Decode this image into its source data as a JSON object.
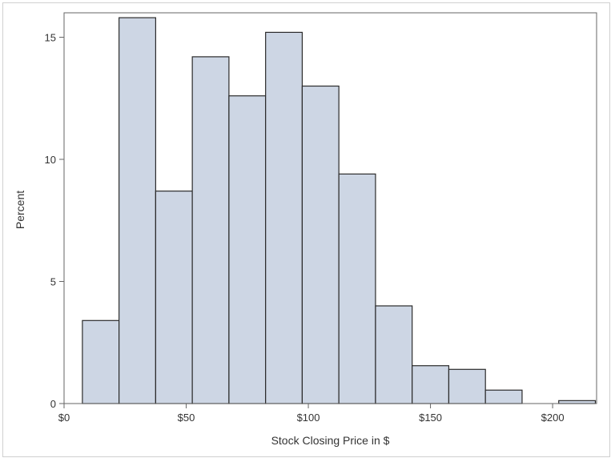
{
  "chart_data": {
    "type": "bar",
    "variant": "histogram",
    "title": "",
    "xlabel": "Stock Closing Price in $",
    "ylabel": "Percent",
    "bin_width": 15,
    "bins": [
      {
        "start": 7.5,
        "end": 22.5,
        "value": 3.4
      },
      {
        "start": 22.5,
        "end": 37.5,
        "value": 15.8
      },
      {
        "start": 37.5,
        "end": 52.5,
        "value": 8.7
      },
      {
        "start": 52.5,
        "end": 67.5,
        "value": 14.2
      },
      {
        "start": 67.5,
        "end": 82.5,
        "value": 12.6
      },
      {
        "start": 82.5,
        "end": 97.5,
        "value": 15.2
      },
      {
        "start": 97.5,
        "end": 112.5,
        "value": 13.0
      },
      {
        "start": 112.5,
        "end": 127.5,
        "value": 9.4
      },
      {
        "start": 127.5,
        "end": 142.5,
        "value": 4.0
      },
      {
        "start": 142.5,
        "end": 157.5,
        "value": 1.55
      },
      {
        "start": 157.5,
        "end": 172.5,
        "value": 1.4
      },
      {
        "start": 172.5,
        "end": 187.5,
        "value": 0.55
      },
      {
        "start": 187.5,
        "end": 202.5,
        "value": 0
      },
      {
        "start": 202.5,
        "end": 217.5,
        "value": 0.12
      }
    ],
    "xlim": [
      0,
      218
    ],
    "ylim": [
      0,
      16
    ],
    "x_ticks": [
      {
        "value": 0,
        "label": "$0"
      },
      {
        "value": 50,
        "label": "$50"
      },
      {
        "value": 100,
        "label": "$100"
      },
      {
        "value": 150,
        "label": "$150"
      },
      {
        "value": 200,
        "label": "$200"
      }
    ],
    "y_ticks": [
      {
        "value": 0,
        "label": "0"
      },
      {
        "value": 5,
        "label": "5"
      },
      {
        "value": 10,
        "label": "10"
      },
      {
        "value": 15,
        "label": "15"
      }
    ],
    "grid": false,
    "legend": "none",
    "colors": {
      "bar_fill": "#cdd6e4",
      "bar_stroke": "#2b2b2b",
      "axis": "#666666",
      "frame": "#666666",
      "text": "#333333"
    }
  }
}
